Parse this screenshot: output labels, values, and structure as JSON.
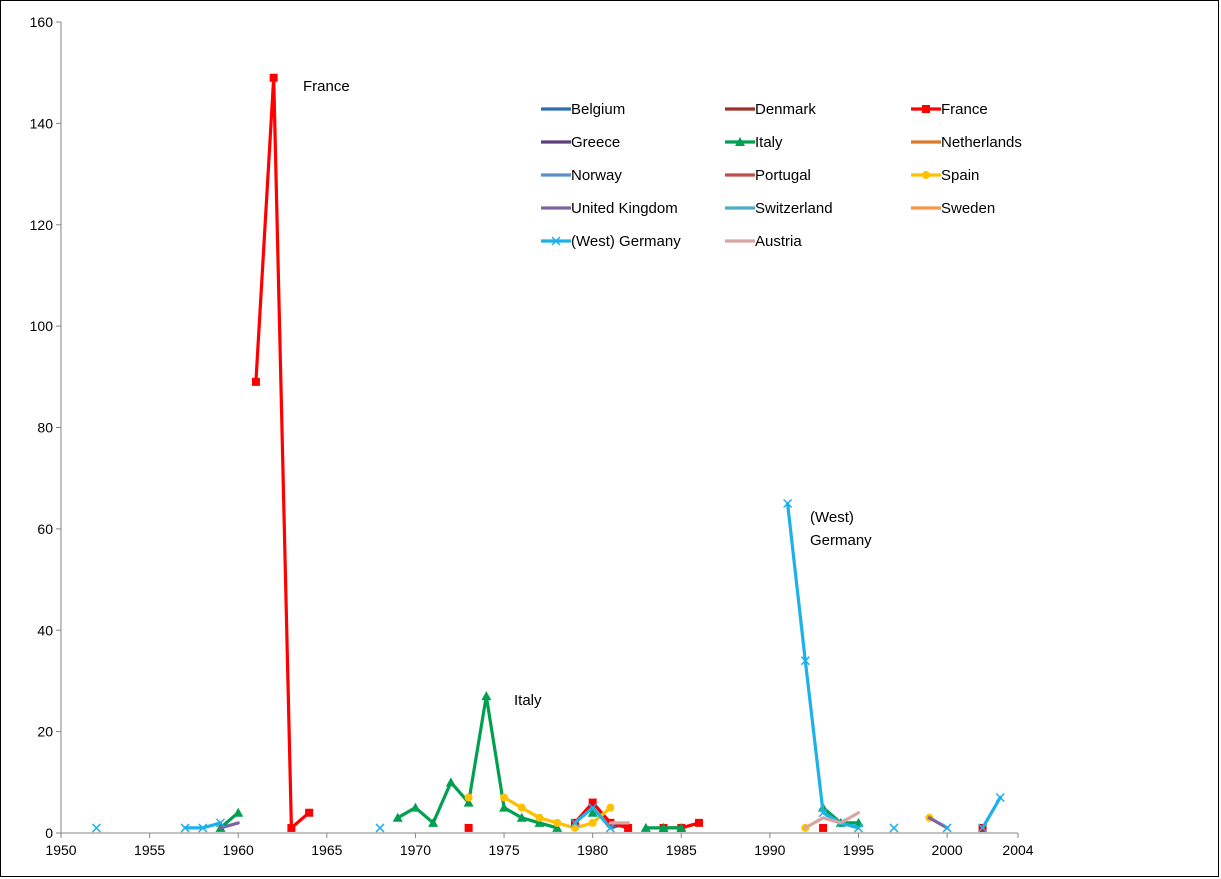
{
  "chart_data": {
    "type": "line",
    "title": "",
    "xlabel": "",
    "ylabel": "",
    "xlim": [
      1950,
      2004
    ],
    "ylim": [
      0,
      160
    ],
    "x_ticks": [
      1950,
      1955,
      1960,
      1965,
      1970,
      1975,
      1980,
      1985,
      1990,
      1995,
      2000,
      2004
    ],
    "y_ticks": [
      0,
      20,
      40,
      60,
      80,
      100,
      120,
      140,
      160
    ],
    "grid": false,
    "legend_position": "top-right",
    "annotations": [
      {
        "text": "France"
      },
      {
        "text": "Italy"
      },
      {
        "text": "(West)"
      },
      {
        "text": "Germany"
      }
    ],
    "series": [
      {
        "name": "Belgium",
        "color": "#2E6DB4",
        "marker": "none",
        "segments": [
          [
            [
              1981,
              1
            ],
            [
              1982,
              2
            ]
          ]
        ]
      },
      {
        "name": "Denmark",
        "color": "#A0302A",
        "marker": "none",
        "segments": []
      },
      {
        "name": "France",
        "color": "#FF0000",
        "marker": "square",
        "segments": [
          [
            [
              1961,
              89
            ],
            [
              1962,
              149
            ],
            [
              1963,
              1
            ],
            [
              1964,
              4
            ]
          ],
          [
            [
              1973,
              1
            ]
          ],
          [
            [
              1979,
              2
            ],
            [
              1980,
              6
            ],
            [
              1981,
              2
            ],
            [
              1982,
              1
            ]
          ],
          [
            [
              1984,
              1
            ],
            [
              1985,
              1
            ],
            [
              1986,
              2
            ]
          ],
          [
            [
              1993,
              1
            ]
          ],
          [
            [
              2002,
              1
            ]
          ]
        ]
      },
      {
        "name": "Greece",
        "color": "#5C3F7B",
        "marker": "none",
        "segments": []
      },
      {
        "name": "Italy",
        "color": "#00A050",
        "marker": "triangle",
        "segments": [
          [
            [
              1959,
              1
            ],
            [
              1960,
              4
            ]
          ],
          [
            [
              1969,
              3
            ],
            [
              1970,
              5
            ],
            [
              1971,
              2
            ],
            [
              1972,
              10
            ],
            [
              1973,
              6
            ],
            [
              1974,
              27
            ],
            [
              1975,
              5
            ],
            [
              1976,
              3
            ],
            [
              1977,
              2
            ],
            [
              1978,
              1
            ]
          ],
          [
            [
              1980,
              4
            ]
          ],
          [
            [
              1983,
              1
            ],
            [
              1984,
              1
            ],
            [
              1985,
              1
            ]
          ],
          [
            [
              1993,
              5
            ],
            [
              1994,
              2
            ],
            [
              1995,
              2
            ]
          ]
        ]
      },
      {
        "name": "Netherlands",
        "color": "#D97A2B",
        "marker": "none",
        "segments": []
      },
      {
        "name": "Norway",
        "color": "#5B8FC9",
        "marker": "none",
        "segments": []
      },
      {
        "name": "Portugal",
        "color": "#C0504D",
        "marker": "none",
        "segments": []
      },
      {
        "name": "Spain",
        "color": "#FFC000",
        "marker": "circle",
        "segments": [
          [
            [
              1973,
              7
            ]
          ],
          [
            [
              1975,
              7
            ],
            [
              1976,
              5
            ],
            [
              1977,
              3
            ],
            [
              1978,
              2
            ],
            [
              1979,
              1
            ],
            [
              1980,
              2
            ],
            [
              1981,
              5
            ]
          ],
          [
            [
              1992,
              1
            ]
          ],
          [
            [
              1999,
              3
            ]
          ]
        ]
      },
      {
        "name": "United Kingdom",
        "color": "#8064A2",
        "marker": "none",
        "segments": [
          [
            [
              1959,
              1
            ],
            [
              1960,
              2
            ]
          ],
          [
            [
              1999,
              3
            ],
            [
              2000,
              1
            ]
          ]
        ]
      },
      {
        "name": "Switzerland",
        "color": "#4BACC6",
        "marker": "none",
        "segments": []
      },
      {
        "name": "Sweden",
        "color": "#F79646",
        "marker": "none",
        "segments": []
      },
      {
        "name": "(West) Germany",
        "color": "#1EB0E8",
        "marker": "x",
        "segments": [
          [
            [
              1952,
              1
            ]
          ],
          [
            [
              1957,
              1
            ],
            [
              1958,
              1
            ],
            [
              1959,
              2
            ]
          ],
          [
            [
              1968,
              1
            ]
          ],
          [
            [
              1979,
              2
            ],
            [
              1980,
              5
            ],
            [
              1981,
              1
            ]
          ],
          [
            [
              1991,
              65
            ],
            [
              1992,
              34
            ],
            [
              1993,
              4
            ],
            [
              1994,
              2
            ],
            [
              1995,
              1
            ]
          ],
          [
            [
              1997,
              1
            ]
          ],
          [
            [
              2000,
              1
            ]
          ],
          [
            [
              2002,
              1
            ],
            [
              2003,
              7
            ]
          ]
        ]
      },
      {
        "name": "Austria",
        "color": "#D9A5A4",
        "marker": "none",
        "segments": [
          [
            [
              1981,
              2
            ],
            [
              1982,
              2
            ]
          ],
          [
            [
              1992,
              1
            ],
            [
              1993,
              3
            ],
            [
              1994,
              2
            ],
            [
              1995,
              4
            ]
          ]
        ]
      }
    ]
  }
}
